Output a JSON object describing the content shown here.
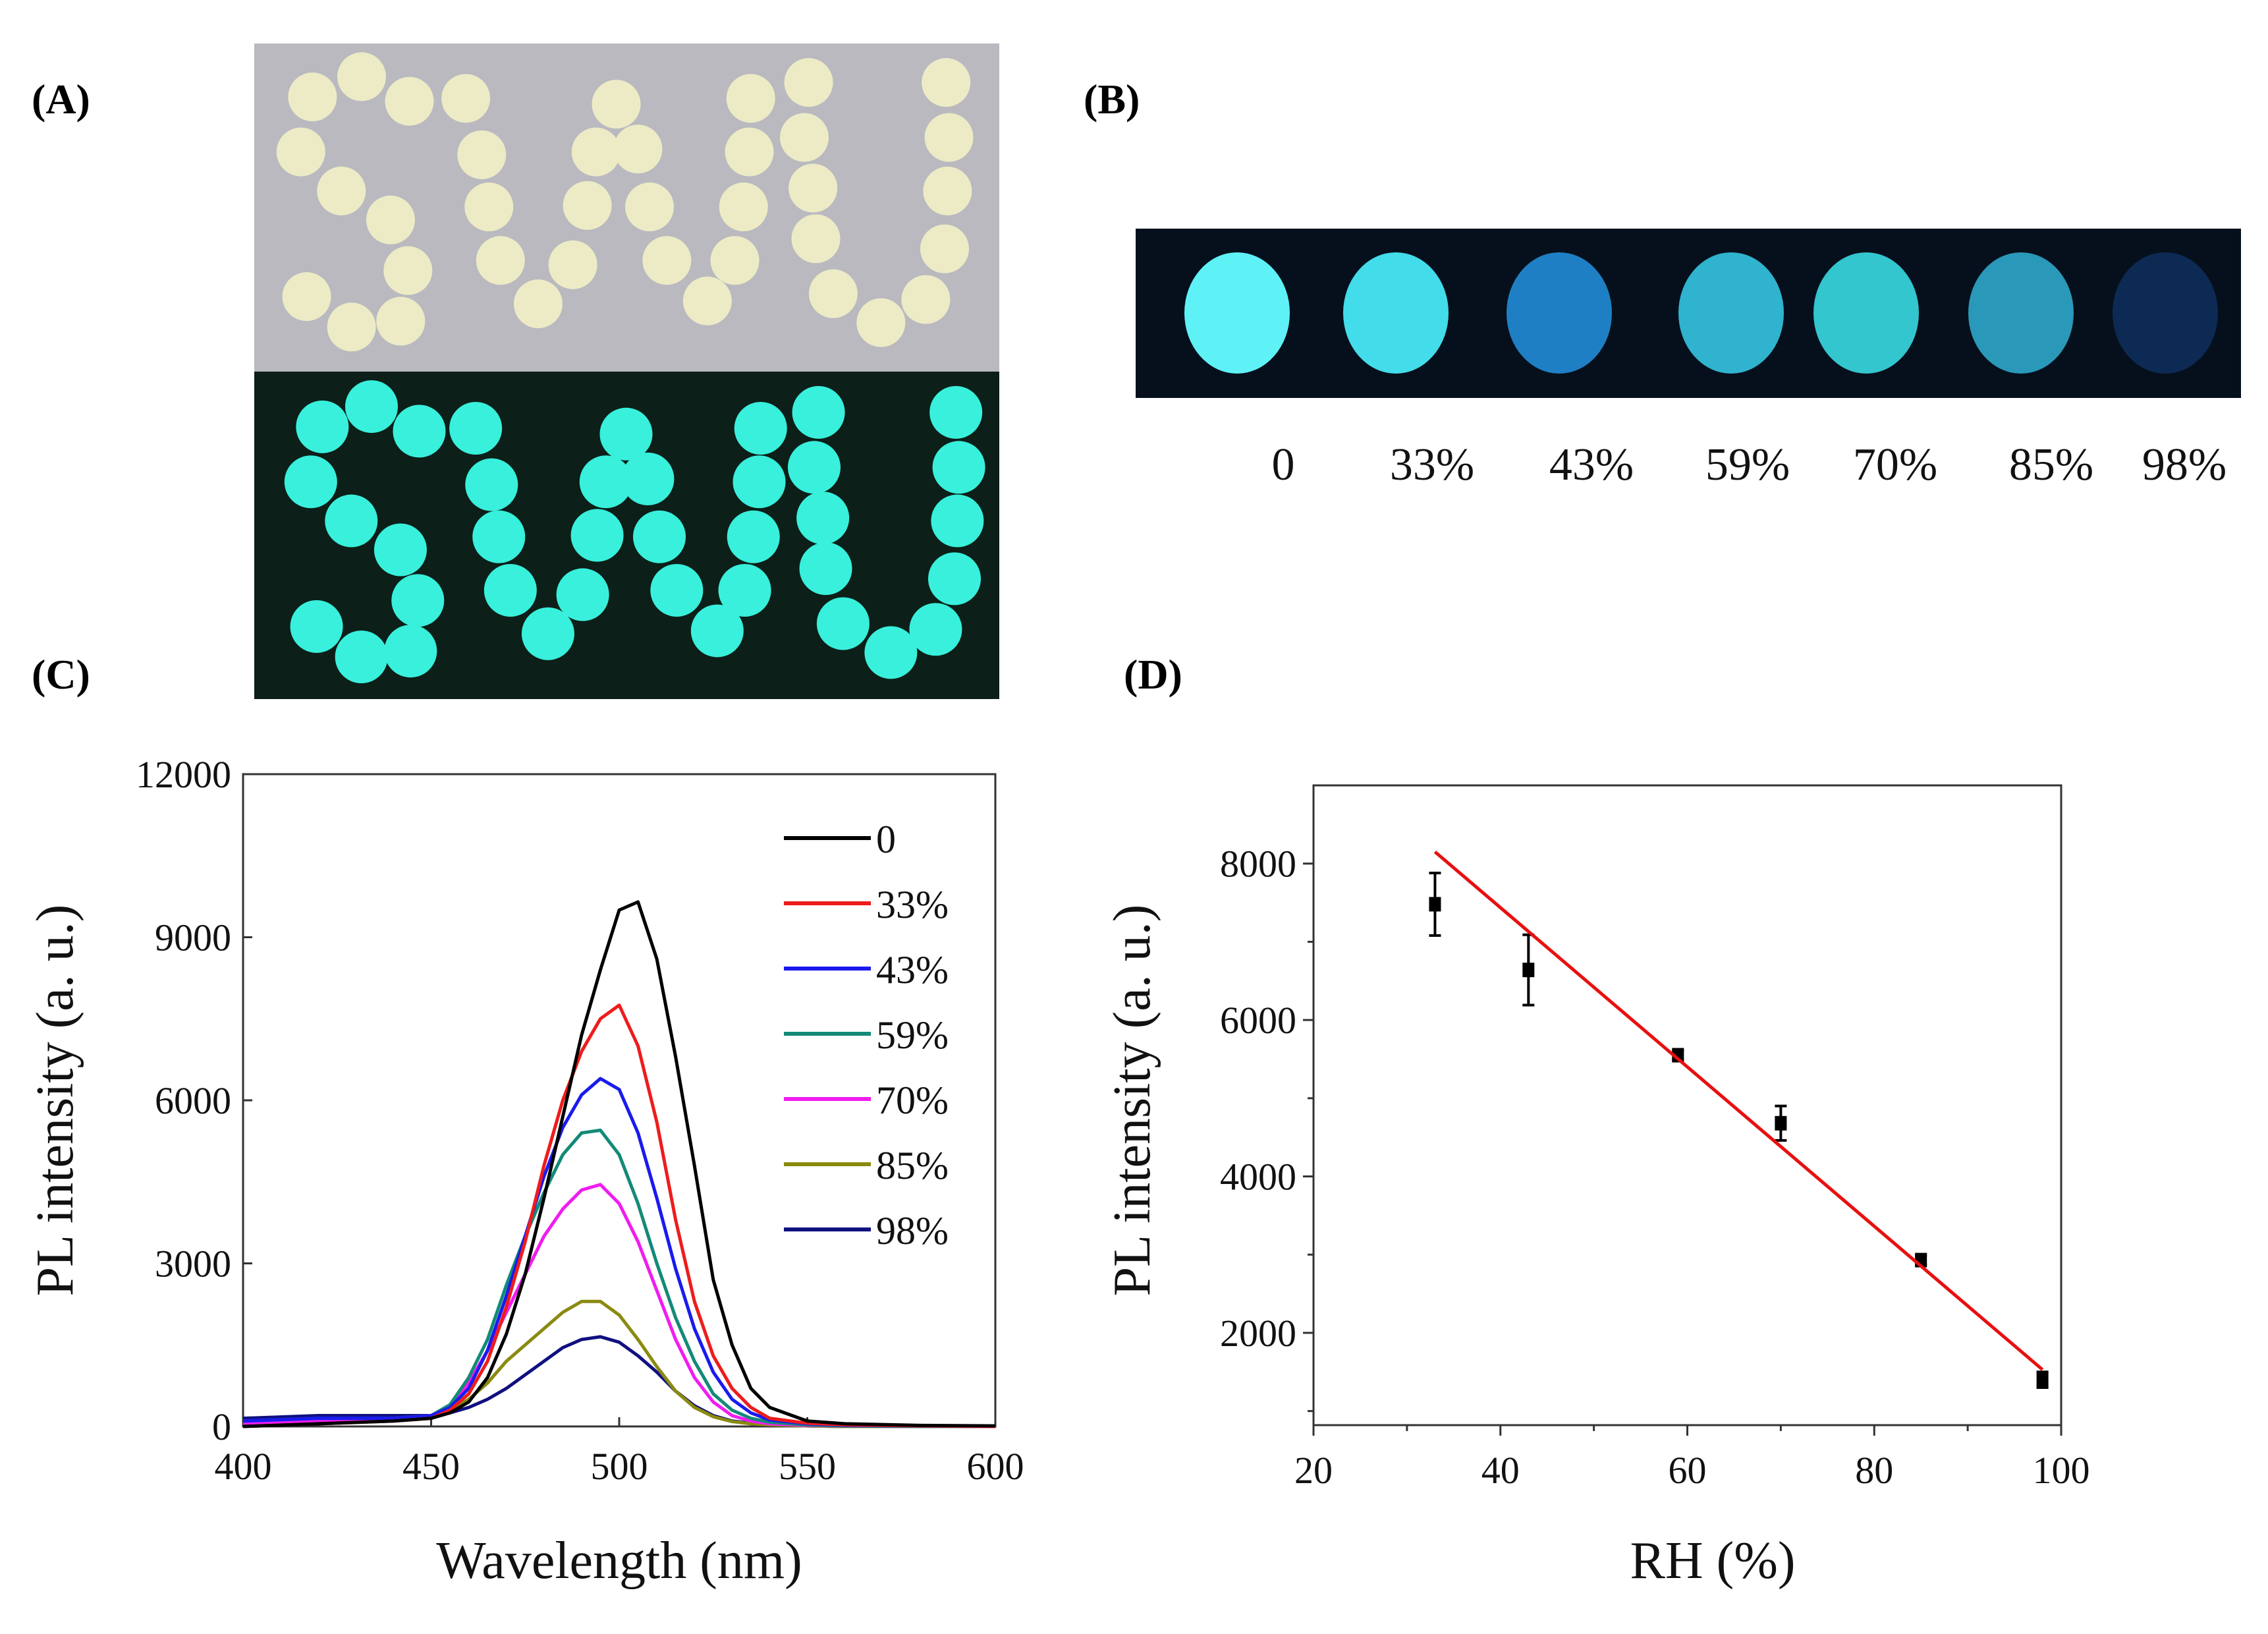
{
  "panels": {
    "a": "(A)",
    "b": "(B)",
    "c": "(C)",
    "d": "(D)"
  },
  "photo_a": {
    "text_spelled": "SWU",
    "colors": {
      "daylight_bg": "#b9b9bf",
      "daylight_disk": "#ecebc6",
      "dark_bg": "#0c1f18",
      "glow_disk": "#38f0dc"
    }
  },
  "photo_b": {
    "labels": [
      "0",
      "33%",
      "43%",
      "59%",
      "70%",
      "85%",
      "98%"
    ],
    "disk_colors": [
      "#5ef2f6",
      "#43dcea",
      "#1f7fc4",
      "#2fb3cf",
      "#33c6cf",
      "#2a98b9",
      "#0d2a55"
    ],
    "bg": "#06101c"
  },
  "chart_data": [
    {
      "type": "line",
      "title": "",
      "xlabel": "Wavelength (nm)",
      "ylabel": "PL intensity (a. u.)",
      "xlim": [
        400,
        600
      ],
      "ylim": [
        0,
        12000
      ],
      "xticks": [
        "400",
        "450",
        "500",
        "550",
        "600"
      ],
      "yticks": [
        "0",
        "3000",
        "6000",
        "9000",
        "12000"
      ],
      "legend_position": "top-right",
      "x": [
        400,
        420,
        440,
        450,
        455,
        460,
        465,
        470,
        475,
        480,
        485,
        490,
        495,
        500,
        505,
        510,
        515,
        520,
        525,
        530,
        535,
        540,
        550,
        560,
        580,
        600
      ],
      "series": [
        {
          "name": "0",
          "color": "#000000",
          "values": [
            0,
            50,
            100,
            150,
            250,
            450,
            900,
            1700,
            2800,
            4200,
            5700,
            7200,
            8400,
            9500,
            9650,
            8600,
            6800,
            4800,
            2700,
            1500,
            700,
            350,
            100,
            50,
            20,
            10
          ]
        },
        {
          "name": "33%",
          "color": "#ee1c1c",
          "values": [
            0,
            50,
            100,
            150,
            300,
            600,
            1200,
            2200,
            3400,
            4800,
            6000,
            6900,
            7500,
            7750,
            7000,
            5600,
            3800,
            2300,
            1300,
            700,
            350,
            150,
            60,
            30,
            10,
            0
          ]
        },
        {
          "name": "43%",
          "color": "#1a1aee",
          "values": [
            100,
            150,
            150,
            200,
            350,
            700,
            1400,
            2400,
            3500,
            4600,
            5500,
            6100,
            6400,
            6200,
            5400,
            4200,
            2900,
            1800,
            1000,
            500,
            250,
            120,
            50,
            20,
            10,
            0
          ]
        },
        {
          "name": "59%",
          "color": "#138a78",
          "values": [
            100,
            150,
            150,
            200,
            400,
            900,
            1600,
            2600,
            3500,
            4300,
            5000,
            5400,
            5450,
            5000,
            4100,
            3000,
            2000,
            1200,
            600,
            300,
            150,
            80,
            30,
            10,
            0,
            0
          ]
        },
        {
          "name": "70%",
          "color": "#f01cf0",
          "values": [
            50,
            100,
            150,
            200,
            350,
            800,
            1400,
            2100,
            2800,
            3500,
            4000,
            4350,
            4450,
            4100,
            3400,
            2500,
            1600,
            900,
            450,
            200,
            100,
            50,
            20,
            10,
            0,
            0
          ]
        },
        {
          "name": "85%",
          "color": "#8a8a10",
          "values": [
            50,
            100,
            150,
            200,
            300,
            500,
            800,
            1200,
            1500,
            1800,
            2100,
            2300,
            2300,
            2050,
            1600,
            1100,
            650,
            350,
            180,
            90,
            50,
            30,
            10,
            0,
            0,
            0
          ]
        },
        {
          "name": "98%",
          "color": "#101080",
          "values": [
            150,
            200,
            200,
            200,
            250,
            350,
            500,
            700,
            950,
            1200,
            1450,
            1600,
            1650,
            1550,
            1300,
            1000,
            650,
            380,
            200,
            100,
            60,
            30,
            10,
            0,
            0,
            0
          ]
        }
      ]
    },
    {
      "type": "scatter",
      "title": "",
      "xlabel": "RH (%)",
      "ylabel": "PL intensity (a. u.)",
      "xlim": [
        20,
        100
      ],
      "ylim": [
        820,
        9000
      ],
      "xticks": [
        "20",
        "40",
        "60",
        "80",
        "100"
      ],
      "yticks": [
        "2000",
        "4000",
        "6000",
        "8000"
      ],
      "points": [
        {
          "x": 33,
          "y": 7480,
          "err": 400
        },
        {
          "x": 43,
          "y": 6640,
          "err": 450
        },
        {
          "x": 59,
          "y": 5550,
          "err": 60
        },
        {
          "x": 70,
          "y": 4680,
          "err": 220
        },
        {
          "x": 85,
          "y": 2930,
          "err": 60
        },
        {
          "x": 98,
          "y": 1400,
          "err": 100
        }
      ],
      "fit_line": {
        "color": "#e81010",
        "x": [
          33,
          98
        ],
        "y": [
          8150,
          1530
        ]
      }
    }
  ]
}
